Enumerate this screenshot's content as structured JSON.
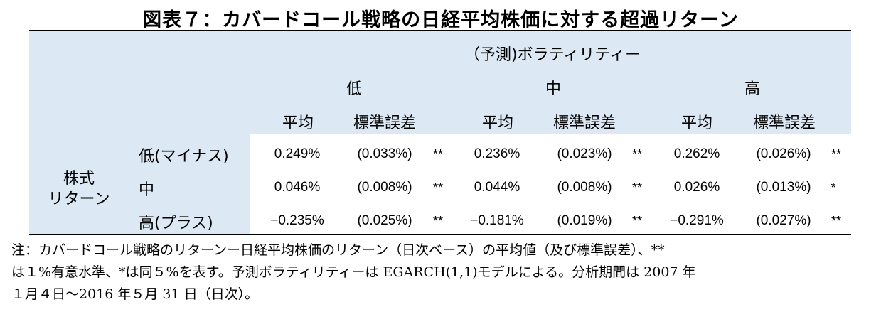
{
  "title": "図表７：カバードコール戦略の日経平均株価に対する超過リターン",
  "header": {
    "group": "（予測)ボラティリティー",
    "levels": [
      "低",
      "中",
      "高"
    ],
    "col_mean": "平均",
    "col_se": "標準誤差"
  },
  "row_group": [
    "株式",
    "リターン"
  ],
  "rows": [
    {
      "label": "低(マイナス)",
      "cells": [
        {
          "mean": "0.249%",
          "se": "(0.033%)",
          "sig": "**"
        },
        {
          "mean": "0.236%",
          "se": "(0.023%)",
          "sig": "**"
        },
        {
          "mean": "0.262%",
          "se": "(0.026%)",
          "sig": "**"
        }
      ]
    },
    {
      "label": "中",
      "cells": [
        {
          "mean": "0.046%",
          "se": "(0.008%)",
          "sig": "**"
        },
        {
          "mean": "0.044%",
          "se": "(0.008%)",
          "sig": "**"
        },
        {
          "mean": "0.026%",
          "se": "(0.013%)",
          "sig": "*"
        }
      ]
    },
    {
      "label": "高(プラス)",
      "cells": [
        {
          "mean": "−0.235%",
          "se": "(0.025%)",
          "sig": "**"
        },
        {
          "mean": "−0.181%",
          "se": "(0.019%)",
          "sig": "**"
        },
        {
          "mean": "−0.291%",
          "se": "(0.027%)",
          "sig": "**"
        }
      ]
    }
  ],
  "note": [
    "注：カバードコール戦略のリターンー日経平均株価のリターン（日次ベース）の平均値（及び標準誤差）、**",
    "は１%有意水準、*は同５%を表す。予測ボラティリティーは EGARCH(1,1)モデルによる。分析期間は 2007 年",
    "１月４日～2016 年５月 31 日（日次）。"
  ]
}
